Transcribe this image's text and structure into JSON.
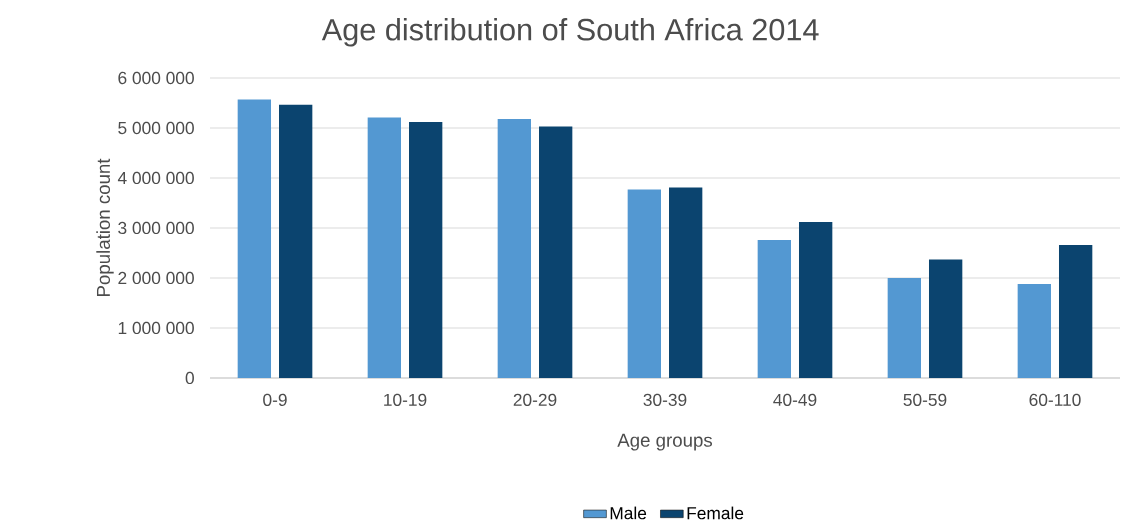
{
  "chart_data": {
    "type": "bar",
    "title": "Age distribution of South Africa 2014",
    "xlabel": "Age groups",
    "ylabel": "Population count",
    "categories": [
      "0-9",
      "10-19",
      "20-29",
      "30-39",
      "40-49",
      "50-59",
      "60-110"
    ],
    "series": [
      {
        "name": "Male",
        "color": "#5398d2",
        "values": [
          5570000,
          5210000,
          5180000,
          3770000,
          2760000,
          2000000,
          1880000
        ]
      },
      {
        "name": "Female",
        "color": "#0b446f",
        "values": [
          5470000,
          5120000,
          5030000,
          3810000,
          3120000,
          2370000,
          2660000
        ]
      }
    ],
    "ylim": [
      0,
      6000000
    ],
    "yticks": [
      {
        "value": 0,
        "label": "0"
      },
      {
        "value": 1000000,
        "label": "1 000 000"
      },
      {
        "value": 2000000,
        "label": "2 000 000"
      },
      {
        "value": 3000000,
        "label": "3 000 000"
      },
      {
        "value": 4000000,
        "label": "4 000 000"
      },
      {
        "value": 5000000,
        "label": "5 000 000"
      },
      {
        "value": 6000000,
        "label": "6 000 000"
      }
    ],
    "grid": "y",
    "legend": "bottom"
  }
}
